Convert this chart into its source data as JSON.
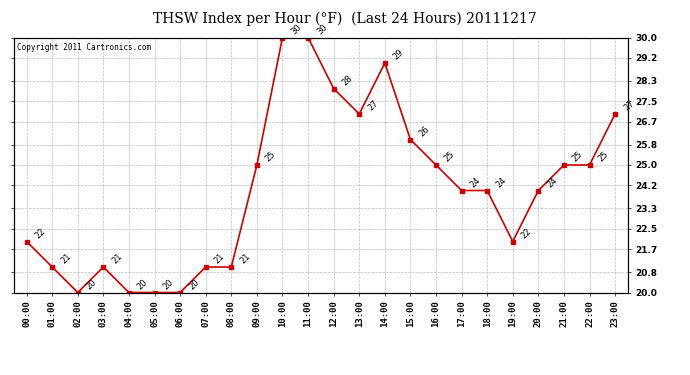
{
  "title": "THSW Index per Hour (°F)  (Last 24 Hours) 20111217",
  "copyright": "Copyright 2011 Cartronics.com",
  "hours": [
    "00:00",
    "01:00",
    "02:00",
    "03:00",
    "04:00",
    "05:00",
    "06:00",
    "07:00",
    "08:00",
    "09:00",
    "10:00",
    "11:00",
    "12:00",
    "13:00",
    "14:00",
    "15:00",
    "16:00",
    "17:00",
    "18:00",
    "19:00",
    "20:00",
    "21:00",
    "22:00",
    "23:00"
  ],
  "values": [
    22,
    21,
    20,
    21,
    20,
    20,
    20,
    21,
    21,
    25,
    30,
    30,
    28,
    27,
    29,
    26,
    25,
    24,
    24,
    22,
    24,
    25,
    25,
    27
  ],
  "ylim": [
    20.0,
    30.0
  ],
  "yticks": [
    20.0,
    20.8,
    21.7,
    22.5,
    23.3,
    24.2,
    25.0,
    25.8,
    26.7,
    27.5,
    28.3,
    29.2,
    30.0
  ],
  "line_color": "#cc0000",
  "marker_color": "#cc0000",
  "bg_color": "#ffffff",
  "plot_bg_color": "#ffffff",
  "grid_color": "#bbbbbb",
  "title_fontsize": 10,
  "label_fontsize": 6.5,
  "annot_fontsize": 6,
  "copyright_fontsize": 5.5
}
